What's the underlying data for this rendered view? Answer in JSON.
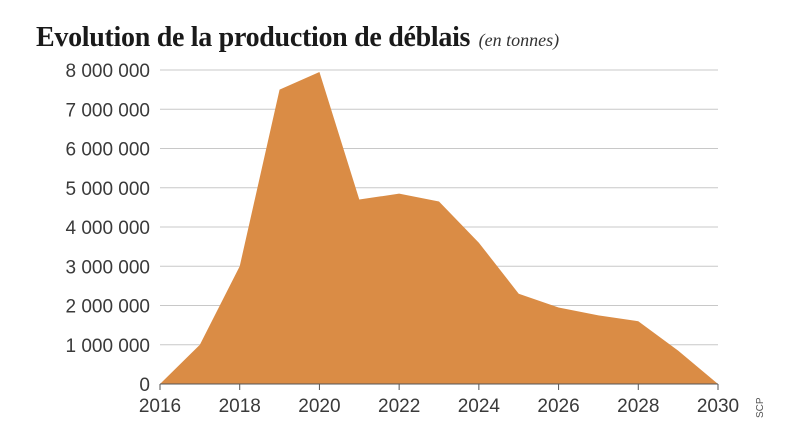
{
  "colors": {
    "area": "#DA8C45",
    "grid": "#C8C8C8",
    "axis": "#555555"
  },
  "source": "SCP",
  "chart_data": {
    "type": "area",
    "title": "Evolution de la production de déblais",
    "subtitle": "(en tonnes)",
    "xlabel": "",
    "ylabel": "",
    "x": [
      2016,
      2017,
      2018,
      2019,
      2020,
      2021,
      2022,
      2023,
      2024,
      2025,
      2026,
      2027,
      2028,
      2029,
      2030
    ],
    "values": [
      0,
      1000000,
      3000000,
      7500000,
      7950000,
      4700000,
      4850000,
      4650000,
      3600000,
      2300000,
      1950000,
      1750000,
      1600000,
      850000,
      0
    ],
    "xlim": [
      2016,
      2030
    ],
    "ylim": [
      0,
      8000000
    ],
    "yticks": [
      0,
      1000000,
      2000000,
      3000000,
      4000000,
      5000000,
      6000000,
      7000000,
      8000000
    ],
    "ytick_labels": [
      "0",
      "1 000 000",
      "2 000 000",
      "3 000 000",
      "4 000 000",
      "5 000 000",
      "6 000 000",
      "7 000 000",
      "8 000 000"
    ],
    "xticks": [
      2016,
      2018,
      2020,
      2022,
      2024,
      2026,
      2028,
      2030
    ],
    "xtick_labels": [
      "2016",
      "2018",
      "2020",
      "2022",
      "2024",
      "2026",
      "2028",
      "2030"
    ],
    "grid": true
  }
}
